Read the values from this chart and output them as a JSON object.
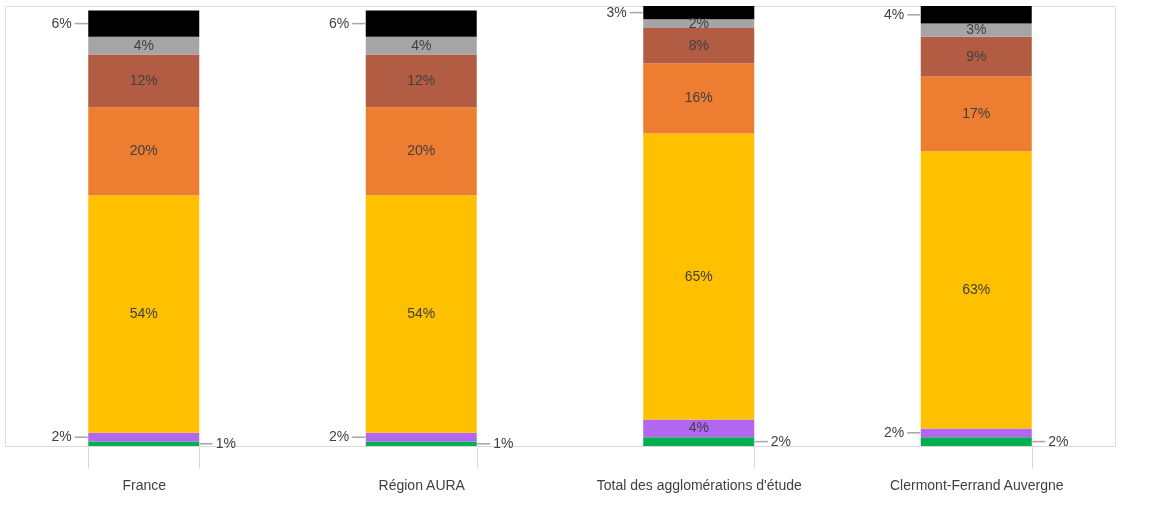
{
  "chart_data": {
    "type": "bar",
    "stacked": true,
    "categories": [
      "France",
      "Région AURA",
      "Total des agglomérations d'étude",
      "Clermont-Ferrand Auvergne"
    ],
    "series": [
      {
        "color": "#00b050",
        "values": [
          1,
          1,
          2,
          2
        ],
        "value_labels": [
          "1%",
          "1%",
          "2%",
          "2%"
        ]
      },
      {
        "color": "#b366f0",
        "values": [
          2,
          2,
          4,
          2
        ],
        "value_labels": [
          "2%",
          "2%",
          "4%",
          "2%"
        ]
      },
      {
        "color": "#ffc000",
        "values": [
          54,
          54,
          65,
          63
        ],
        "value_labels": [
          "54%",
          "54%",
          "65%",
          "63%"
        ]
      },
      {
        "color": "#ed7d31",
        "values": [
          20,
          20,
          16,
          17
        ],
        "value_labels": [
          "20%",
          "20%",
          "16%",
          "17%"
        ]
      },
      {
        "color": "#b35c44",
        "values": [
          12,
          12,
          8,
          9
        ],
        "value_labels": [
          "12%",
          "12%",
          "8%",
          "9%"
        ]
      },
      {
        "color": "#a5a5a5",
        "values": [
          4,
          4,
          2,
          3
        ],
        "value_labels": [
          "4%",
          "4%",
          "2%",
          "3%"
        ]
      },
      {
        "color": "#000000",
        "values": [
          6,
          6,
          3,
          4
        ],
        "value_labels": [
          "6%",
          "6%",
          "3%",
          "4%"
        ]
      }
    ],
    "legend": false,
    "grid": false
  }
}
